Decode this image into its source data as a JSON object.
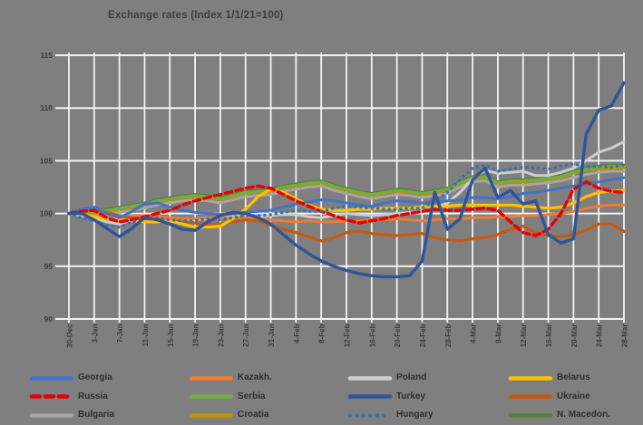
{
  "ui": {
    "background_color": "#7F7F7F",
    "gridline_color": "#F2F2F2",
    "axis_text_color": "#3D3D3D",
    "legend_text_color": "#2E2E2E"
  },
  "chart_data": {
    "type": "line",
    "title": "Exchange rates (Index 1/1/21=100)",
    "xlabel": "",
    "ylabel": "",
    "ylim": [
      90,
      115
    ],
    "y_ticks": [
      90,
      95,
      100,
      105,
      110,
      115
    ],
    "grid": "on",
    "legend_position": "bottom",
    "x_tick_labels": [
      "30-Dec",
      "3-Jan",
      "7-Jan",
      "11-Jan",
      "15-Jan",
      "19-Jan",
      "23-Jan",
      "27-Jan",
      "31-Jan",
      "4-Feb",
      "8-Feb",
      "12-Feb",
      "16-Feb",
      "20-Feb",
      "24-Feb",
      "28-Feb",
      "4-Mar",
      "8-Mar",
      "12-Mar",
      "16-Mar",
      "20-Mar",
      "24-Mar",
      "28-Mar"
    ],
    "points_per_tick_interval": 2,
    "series": [
      {
        "name": "Bulgaria",
        "color": "#A6A6A6",
        "style": "solid",
        "width": 3,
        "values": [
          100,
          99.8,
          99.9,
          100,
          100.1,
          100.3,
          100.5,
          100.8,
          101,
          101.2,
          101.3,
          101.2,
          101,
          101.3,
          101.6,
          101.7,
          101.8,
          102.1,
          102.3,
          102.5,
          102.6,
          102.2,
          101.9,
          101.6,
          101.4,
          101.6,
          101.8,
          101.7,
          101.5,
          101.7,
          101.9,
          102.5,
          103,
          103.1,
          102.5,
          102.7,
          102.7,
          102.8,
          102.9,
          103.1,
          103.4,
          103.7,
          103.9,
          104,
          104
        ]
      },
      {
        "name": "Croatia",
        "color": "#BF8F00",
        "style": "solid",
        "width": 3,
        "values": [
          100,
          100,
          100.1,
          100.2,
          100.4,
          100.6,
          100.8,
          101.1,
          101.3,
          101.5,
          101.6,
          101.5,
          101.3,
          101.6,
          101.9,
          102,
          102.1,
          102.4,
          102.6,
          102.8,
          102.9,
          102.5,
          102.2,
          101.9,
          101.7,
          101.9,
          102.1,
          102,
          101.8,
          102,
          102.2,
          102.8,
          103.3,
          103.4,
          102.8,
          103,
          103,
          103.1,
          103.2,
          103.4,
          103.8,
          104.1,
          104.2,
          104.3,
          104.3
        ]
      },
      {
        "name": "N. Macedon.",
        "color": "#538135",
        "style": "solid",
        "width": 3,
        "values": [
          100,
          100.2,
          100.3,
          100.4,
          100.6,
          100.8,
          101,
          101.3,
          101.5,
          101.7,
          101.8,
          101.7,
          101.5,
          101.8,
          102.1,
          102.2,
          102.3,
          102.6,
          102.8,
          103,
          103.1,
          102.7,
          102.4,
          102.1,
          101.9,
          102.1,
          102.3,
          102.2,
          102,
          102.2,
          102.4,
          103,
          103.5,
          103.6,
          103,
          103.2,
          103.2,
          103.3,
          103.4,
          103.6,
          104,
          104.3,
          104.5,
          104.6,
          104.6
        ]
      },
      {
        "name": "Serbia",
        "color": "#70AD47",
        "style": "solid",
        "width": 3,
        "values": [
          100,
          100.1,
          100.2,
          100.3,
          100.5,
          100.7,
          100.9,
          101.2,
          101.4,
          101.6,
          101.7,
          101.6,
          101.4,
          101.7,
          102,
          102.1,
          102.2,
          102.5,
          102.7,
          102.9,
          103,
          102.6,
          102.3,
          102,
          101.8,
          102,
          102.2,
          102.1,
          101.9,
          102.1,
          102.3,
          102.9,
          103.4,
          103.5,
          102.9,
          103.1,
          103.1,
          103.2,
          103.3,
          103.5,
          103.9,
          104.2,
          104.4,
          104.5,
          104.5
        ]
      },
      {
        "name": "Poland",
        "color": "#CDCDCD",
        "style": "solid",
        "width": 3,
        "values": [
          100,
          99.8,
          99.6,
          99.2,
          99,
          99.4,
          99.6,
          99.7,
          99.6,
          99.5,
          99.4,
          99.5,
          99.6,
          99.7,
          99.6,
          99.7,
          99.8,
          99.9,
          99.9,
          99.7,
          99.6,
          99.8,
          100,
          99.9,
          99.8,
          99.9,
          100,
          100.1,
          100.2,
          100.5,
          101,
          102,
          103.3,
          104.1,
          103.8,
          103.9,
          104,
          103.6,
          103.6,
          103.9,
          104.3,
          105,
          105.8,
          106.2,
          106.8
        ]
      },
      {
        "name": "Kazakh.",
        "color": "#ED7D31",
        "style": "solid",
        "width": 3,
        "values": [
          100,
          99.9,
          99.8,
          99.8,
          99.7,
          99.8,
          99.8,
          99.7,
          99.6,
          99.5,
          99.5,
          99.6,
          99.6,
          99.6,
          99.6,
          99.5,
          99.4,
          99.3,
          99.2,
          99.3,
          99.2,
          99.2,
          99.3,
          99.3,
          99.4,
          99.4,
          99.5,
          99.4,
          99.3,
          99.4,
          99.5,
          99.5,
          99.6,
          99.6,
          99.7,
          99.7,
          99.8,
          99.8,
          99.9,
          100,
          100.2,
          100.5,
          100.7,
          100.8,
          100.8
        ]
      },
      {
        "name": "Ukraine",
        "color": "#C55A11",
        "style": "solid",
        "width": 3.2,
        "values": [
          100,
          100.2,
          100.4,
          100.1,
          99.8,
          99.6,
          99.5,
          99.4,
          99.3,
          99.2,
          99.1,
          99,
          99,
          99.2,
          99.4,
          99.3,
          98.9,
          98.5,
          98.2,
          97.8,
          97.4,
          97.7,
          98.2,
          98.3,
          98.1,
          98,
          97.9,
          98,
          98.1,
          97.7,
          97.5,
          97.4,
          97.6,
          97.7,
          98,
          98.5,
          98.8,
          98.2,
          97.9,
          97.8,
          98,
          98.4,
          99,
          99,
          98.3
        ]
      },
      {
        "name": "Belarus",
        "color": "#FFC000",
        "style": "solid",
        "width": 3.2,
        "values": [
          100,
          99.9,
          99.7,
          99.5,
          99.4,
          99.3,
          99.2,
          99.2,
          99.3,
          99,
          98.7,
          98.7,
          98.8,
          99.5,
          100.4,
          101.6,
          102.3,
          102,
          101.4,
          100.8,
          100.4,
          100.3,
          100.3,
          100.4,
          100.4,
          100.5,
          100.5,
          100.5,
          100.6,
          100.7,
          100.7,
          100.8,
          100.8,
          100.8,
          100.8,
          100.8,
          100.7,
          100.6,
          100.5,
          100.6,
          101,
          101.6,
          102,
          102.1,
          102.2
        ]
      },
      {
        "name": "Georgia",
        "color": "#4472C4",
        "style": "solid",
        "width": 3,
        "values": [
          100,
          100.4,
          100.6,
          100,
          99.6,
          100.2,
          100.9,
          101,
          100.6,
          100.3,
          100.1,
          100,
          99.9,
          100,
          100.1,
          100.2,
          100.3,
          100.6,
          100.9,
          101.1,
          101.3,
          101.2,
          101,
          100.8,
          100.7,
          101,
          101.2,
          101.1,
          101,
          101.1,
          101.2,
          101.3,
          101.5,
          101.5,
          101.4,
          101.6,
          101.9,
          102,
          102.2,
          102.4,
          102.6,
          102.8,
          103,
          103.2,
          103.4
        ]
      },
      {
        "name": "Russia",
        "color": "#E60000",
        "style": "dashed",
        "width": 3.4,
        "values": [
          100,
          100.2,
          100.3,
          99.6,
          99.2,
          99.4,
          99.7,
          100,
          100.3,
          100.8,
          101.2,
          101.5,
          101.8,
          102.1,
          102.4,
          102.6,
          102.4,
          101.8,
          101.2,
          100.7,
          100.2,
          99.8,
          99.4,
          99.1,
          99.3,
          99.5,
          99.8,
          100,
          100.2,
          100.4,
          100.3,
          100.3,
          100.4,
          100.5,
          100.3,
          99.2,
          98.2,
          97.9,
          98.5,
          100,
          102.3,
          103,
          102.4,
          102.1,
          102
        ]
      },
      {
        "name": "Hungary",
        "color": "#2E75B6",
        "style": "dotted",
        "width": 3.4,
        "values": [
          100,
          99.6,
          99.3,
          98.9,
          98.7,
          99.2,
          99.5,
          99.6,
          99.4,
          99.3,
          99.3,
          99.5,
          99.4,
          99.6,
          99.8,
          99.8,
          99.9,
          100.1,
          100.3,
          100.2,
          100.2,
          100.5,
          100.7,
          100.6,
          100.5,
          100.4,
          100.4,
          100.5,
          100.5,
          101.2,
          102,
          103.2,
          104.3,
          104.6,
          104,
          104.2,
          104.4,
          104.3,
          104.2,
          104.5,
          104.7,
          104.4,
          104.5,
          104.4,
          104.6
        ]
      },
      {
        "name": "Turkey",
        "color": "#2F5597",
        "style": "solid",
        "width": 3.4,
        "values": [
          100,
          100,
          99.4,
          98.6,
          97.8,
          98.6,
          99.6,
          99.4,
          99,
          98.5,
          98.4,
          99.2,
          99.8,
          100.1,
          100,
          99.6,
          99,
          98,
          97,
          96.2,
          95.5,
          95,
          94.6,
          94.3,
          94.1,
          94,
          94,
          94.1,
          95.5,
          102,
          98.5,
          99.5,
          103.2,
          104.3,
          101.5,
          102.2,
          100.9,
          101.2,
          98,
          97.2,
          97.6,
          107.5,
          109.8,
          110.2,
          112.4
        ]
      }
    ],
    "legend_columns": [
      [
        "Georgia",
        "Russia",
        "Bulgaria"
      ],
      [
        "Kazakh.",
        "Serbia",
        "Croatia"
      ],
      [
        "Poland",
        "Turkey",
        "Hungary"
      ],
      [
        "Belarus",
        "Ukraine",
        "N. Macedon."
      ]
    ]
  }
}
